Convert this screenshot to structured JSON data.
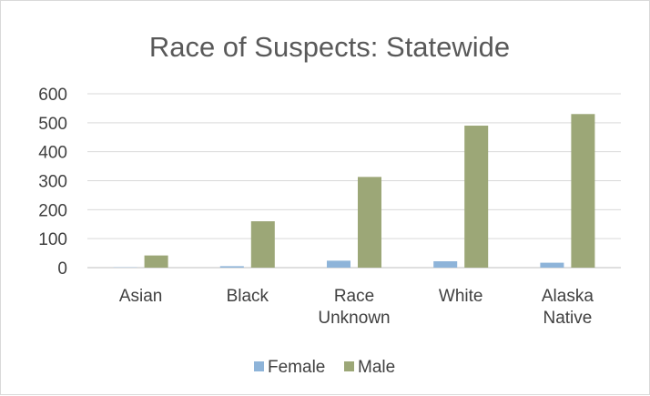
{
  "chart_data": {
    "type": "bar",
    "title": "Race of Suspects: Statewide",
    "categories": [
      [
        "Asian"
      ],
      [
        "Black"
      ],
      [
        "Race",
        "Unknown"
      ],
      [
        "White"
      ],
      [
        "Alaska",
        "Native"
      ]
    ],
    "series": [
      {
        "name": "Female",
        "color": "#8eb4d9",
        "values": [
          1,
          5,
          24,
          22,
          17
        ]
      },
      {
        "name": "Male",
        "color": "#9ca777",
        "values": [
          42,
          160,
          313,
          490,
          530
        ]
      }
    ],
    "ylim": [
      0,
      600
    ],
    "yticks": [
      0,
      100,
      200,
      300,
      400,
      500,
      600
    ],
    "grid": true,
    "legend": "bottom"
  }
}
